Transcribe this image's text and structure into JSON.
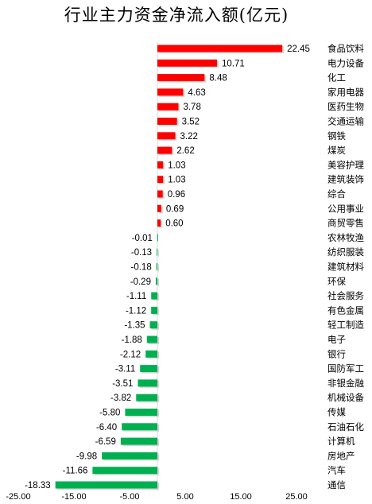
{
  "chart_data": {
    "type": "bar",
    "orientation": "horizontal",
    "title": "行业主力资金净流入额(亿元)",
    "categories": [
      "食品饮料",
      "电力设备",
      "化工",
      "家用电器",
      "医药生物",
      "交通运输",
      "钢铁",
      "煤炭",
      "美容护理",
      "建筑装饰",
      "综合",
      "公用事业",
      "商贸零售",
      "农林牧渔",
      "纺织服装",
      "建筑材料",
      "环保",
      "社会服务",
      "有色金属",
      "轻工制造",
      "电子",
      "银行",
      "国防军工",
      "非银金融",
      "机械设备",
      "传媒",
      "石油石化",
      "计算机",
      "房地产",
      "汽车",
      "通信"
    ],
    "values": [
      22.45,
      10.71,
      8.48,
      4.63,
      3.78,
      3.52,
      3.22,
      2.62,
      1.03,
      1.03,
      0.96,
      0.69,
      0.6,
      -0.01,
      -0.13,
      -0.18,
      -0.29,
      -1.11,
      -1.12,
      -1.35,
      -1.88,
      -2.12,
      -3.11,
      -3.51,
      -3.82,
      -5.8,
      -6.4,
      -6.59,
      -9.98,
      -11.66,
      -18.33
    ],
    "value_labels": [
      "22.45",
      "10.71",
      "8.48",
      "4.63",
      "3.78",
      "3.52",
      "3.22",
      "2.62",
      "1.03",
      "1.03",
      "0.96",
      "0.69",
      "0.60",
      "-0.01",
      "-0.13",
      "-0.18",
      "-0.29",
      "-1.11",
      "-1.12",
      "-1.35",
      "-1.88",
      "-2.12",
      "-3.11",
      "-3.51",
      "-3.82",
      "-5.80",
      "-6.40",
      "-6.59",
      "-9.98",
      "-11.66",
      "-18.33"
    ],
    "x_ticks": [
      "-25.00",
      "-15.00",
      "-5.00",
      "5.00",
      "15.00",
      "25.00"
    ],
    "x_tick_values": [
      -25,
      -15,
      -5,
      5,
      15,
      25
    ],
    "xlim": [
      -25,
      25
    ],
    "grid": false,
    "legend": "none",
    "colors": {
      "positive": "#ff0000",
      "negative": "#00b050",
      "shadow": "#c8c8c8",
      "zero_line": "#d9d9d9"
    }
  }
}
